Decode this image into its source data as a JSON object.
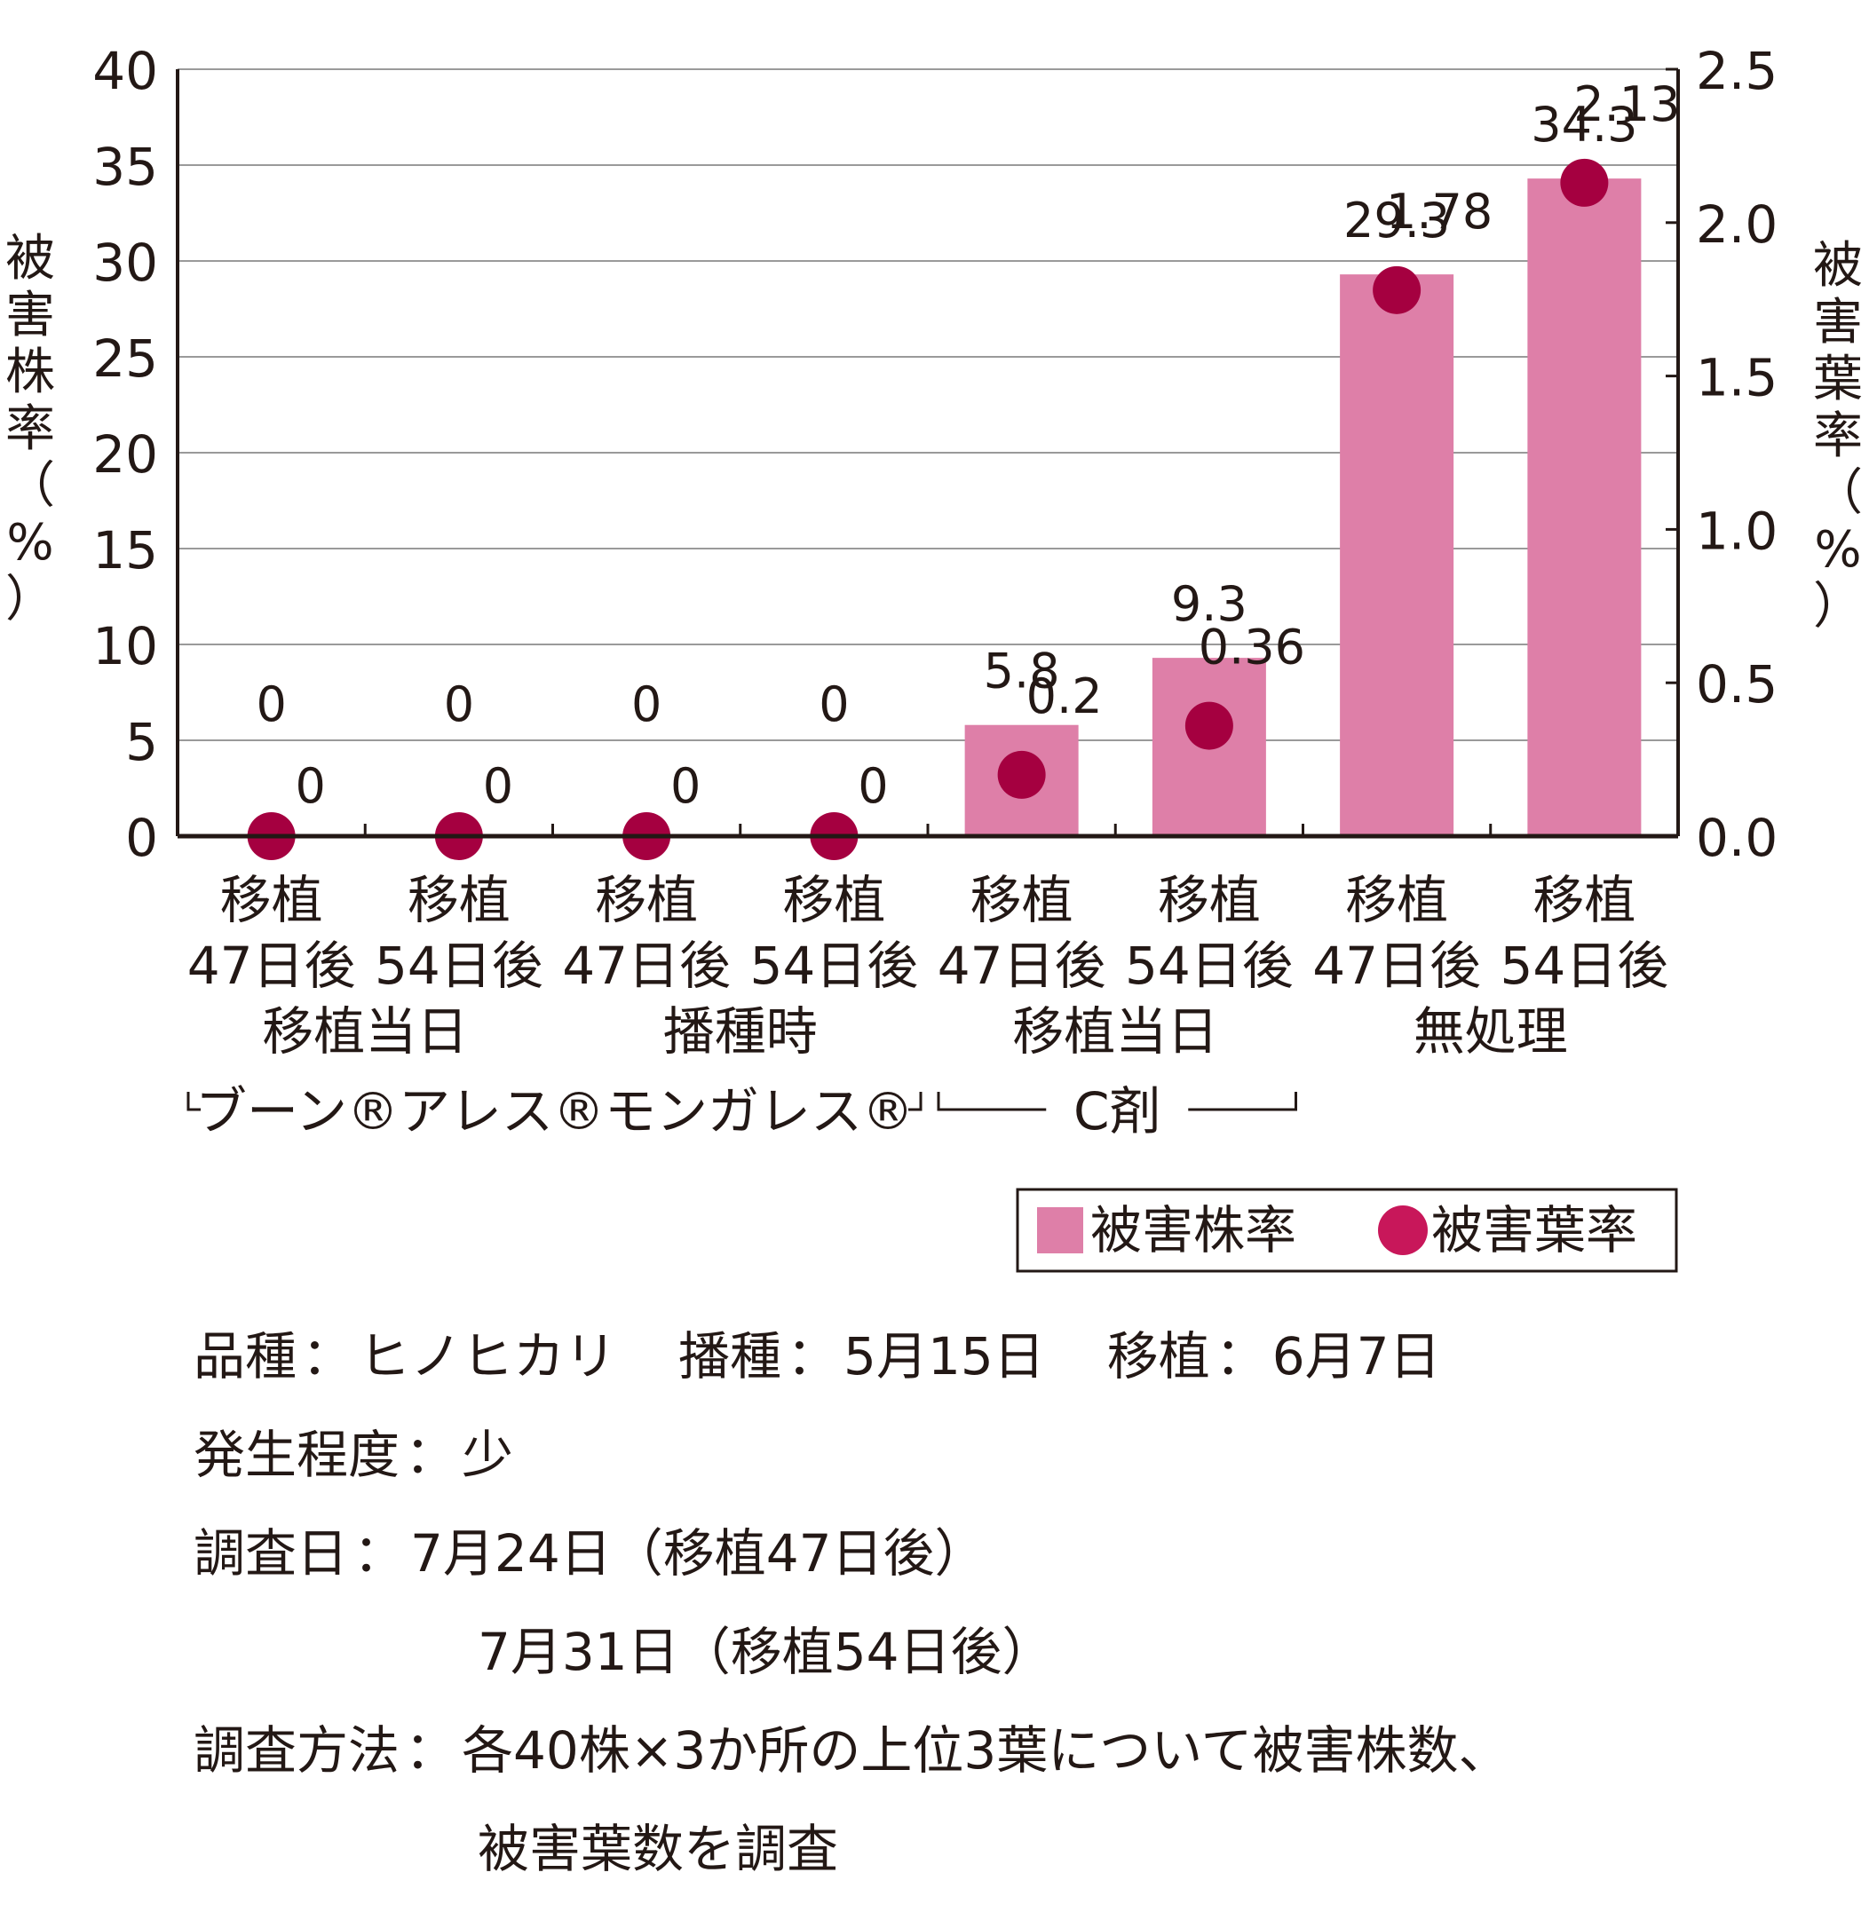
{
  "chart_data": {
    "type": "bar",
    "categories": [
      {
        "line1": "移植",
        "line2": "47日後"
      },
      {
        "line1": "移植",
        "line2": "54日後"
      },
      {
        "line1": "移植",
        "line2": "47日後"
      },
      {
        "line1": "移植",
        "line2": "54日後"
      },
      {
        "line1": "移植",
        "line2": "47日後"
      },
      {
        "line1": "移植",
        "line2": "54日後"
      },
      {
        "line1": "移植",
        "line2": "47日後"
      },
      {
        "line1": "移植",
        "line2": "54日後"
      }
    ],
    "groups": [
      {
        "label": "移植当日",
        "span": [
          0,
          1
        ]
      },
      {
        "label": "播種時",
        "span": [
          2,
          3
        ]
      },
      {
        "label": "移植当日",
        "span": [
          4,
          5
        ]
      },
      {
        "label": "無処理",
        "span": [
          6,
          7
        ]
      }
    ],
    "treatments": {
      "boon": {
        "label": "ブーン®アレス®モンガレス®",
        "span": [
          0,
          3
        ]
      },
      "c": {
        "label": "C剤",
        "span": [
          4,
          5
        ]
      }
    },
    "series": [
      {
        "name": "被害株率",
        "type": "bar",
        "axis": "left",
        "color": "#de7fa8",
        "values": [
          0,
          0,
          0,
          0,
          5.8,
          9.3,
          29.3,
          34.3
        ],
        "labels": [
          "0",
          "0",
          "0",
          "0",
          "5.8",
          "9.3",
          "29.3",
          "34.3"
        ]
      },
      {
        "name": "被害葉率",
        "type": "scatter",
        "axis": "right",
        "color": "#a50040",
        "values": [
          0,
          0,
          0,
          0,
          0.2,
          0.36,
          1.78,
          2.13
        ],
        "labels": [
          "0",
          "0",
          "0",
          "0",
          "0.2",
          "0.36",
          "1.78",
          "2.13"
        ]
      }
    ],
    "y_left": {
      "label": "被害株率（%）",
      "ylim": [
        0,
        40
      ],
      "ticks": [
        "0",
        "5",
        "10",
        "15",
        "20",
        "25",
        "30",
        "35",
        "40"
      ]
    },
    "y_right": {
      "label": "被害葉率（%）",
      "ylim": [
        0,
        2.5
      ],
      "ticks": [
        "0.0",
        "0.5",
        "1.0",
        "1.5",
        "2.0",
        "2.5"
      ]
    },
    "grid": true,
    "legend": {
      "placement": "bottom-right",
      "bar_label": "被害株率",
      "dot_label": "被害葉率",
      "bar_color": "#de7fa8",
      "dot_color": "#c8175a"
    }
  },
  "notes": {
    "variety_key": "品種",
    "variety_value": "ヒノヒカリ",
    "sowing_key": "播種",
    "sowing_value": "5月15日",
    "transplant_key": "移植",
    "transplant_value": "6月7日",
    "severity_key": "発生程度",
    "severity_value": "少",
    "survey_date_key": "調査日",
    "survey_date_1": "7月24日（移植47日後）",
    "survey_date_2": "7月31日（移植54日後）",
    "method_key": "調査方法",
    "method_line1": "各40株×3か所の上位3葉について被害株数、",
    "method_line2": "被害葉数を調査",
    "separator": "："
  }
}
